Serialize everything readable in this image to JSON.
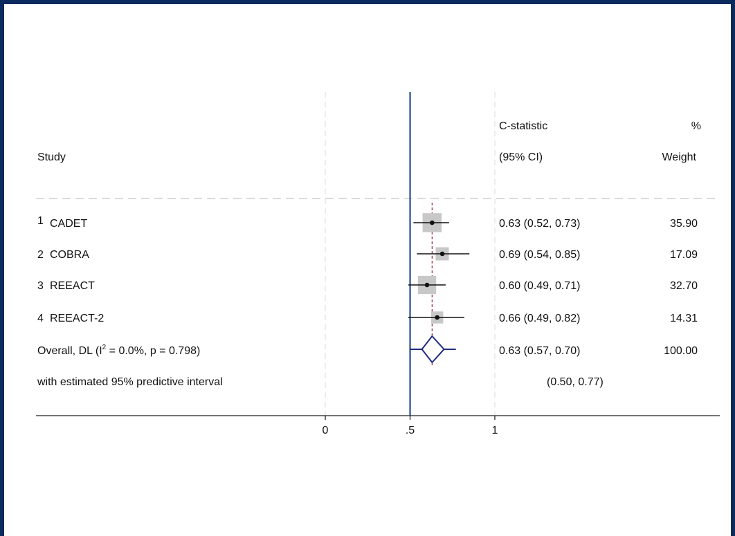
{
  "chart_data": {
    "type": "forest",
    "headers": {
      "study": "Study",
      "estimate_line1": "C-statistic",
      "estimate_line2": "(95% CI)",
      "weight_line1": "%",
      "weight_line2": "Weight"
    },
    "studies": [
      {
        "num": "1",
        "name": "CADET",
        "est": 0.63,
        "lo": 0.52,
        "hi": 0.73,
        "ci_text": "0.63 (0.52, 0.73)",
        "weight": 35.9,
        "weight_text": "35.90"
      },
      {
        "num": "2",
        "name": "COBRA",
        "est": 0.69,
        "lo": 0.54,
        "hi": 0.85,
        "ci_text": "0.69 (0.54, 0.85)",
        "weight": 17.09,
        "weight_text": "17.09"
      },
      {
        "num": "3",
        "name": "REEACT",
        "est": 0.6,
        "lo": 0.49,
        "hi": 0.71,
        "ci_text": "0.60 (0.49, 0.71)",
        "weight": 32.7,
        "weight_text": "32.70"
      },
      {
        "num": "4",
        "name": "REEACT-2",
        "est": 0.66,
        "lo": 0.49,
        "hi": 0.82,
        "ci_text": "0.66 (0.49, 0.82)",
        "weight": 14.31,
        "weight_text": "14.31"
      }
    ],
    "overall": {
      "label_pre": "Overall, DL (I",
      "label_sup": "2",
      "label_post": " = 0.0%, p = 0.798)",
      "est": 0.63,
      "lo": 0.57,
      "hi": 0.7,
      "ci_text": "0.63 (0.57, 0.70)",
      "weight_text": "100.00"
    },
    "predictive": {
      "label": "with estimated 95% predictive interval",
      "lo": 0.5,
      "hi": 0.77,
      "ci_text": "(0.50, 0.77)"
    },
    "x_ticks": [
      {
        "value": 0,
        "label": "0"
      },
      {
        "value": 0.5,
        "label": ".5"
      },
      {
        "value": 1,
        "label": "1"
      }
    ],
    "xlim": [
      0,
      1
    ],
    "null_line": 0.5,
    "colors": {
      "frame": "#0b2a5e",
      "null_line": "#0b3a7a",
      "overall_diamond": "#1f2a80",
      "overall_dashed": "#9b2d40",
      "weight_box": "#c8c8c8",
      "grid": "#d8d8d8"
    }
  }
}
